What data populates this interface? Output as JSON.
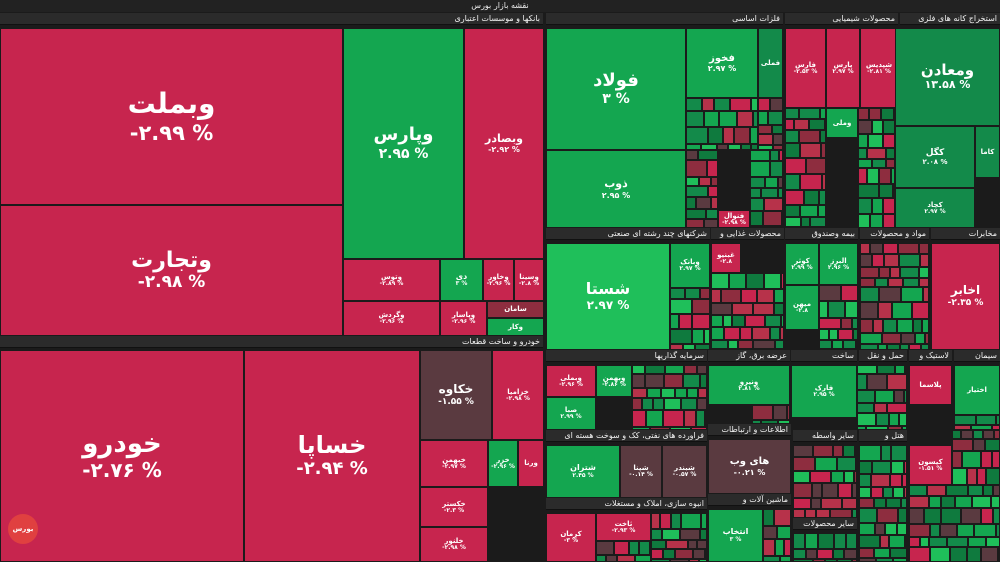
{
  "page_title": "نقشه بازار بورس",
  "colors": {
    "dark_red": "#c7254e",
    "red": "#b7324a",
    "mid_red": "#8e2d3f",
    "dark_green": "#138a4a",
    "green": "#14a650",
    "bright_green": "#1fbf5a",
    "neutral": "#5a3a40"
  },
  "sectors": [
    {
      "id": "banks",
      "name": "بانکها و موسسات اعتباری"
    },
    {
      "id": "auto",
      "name": "خودرو و ساخت قطعات"
    },
    {
      "id": "metals",
      "name": "فلزات اساسی"
    },
    {
      "id": "chem",
      "name": "محصولات شیمیایی"
    },
    {
      "id": "mining",
      "name": "استخراج کانه های فلزی"
    },
    {
      "id": "holding",
      "name": "شرکتهای چند رشته ای صنعتی"
    },
    {
      "id": "food",
      "name": "محصولات غذایی و"
    },
    {
      "id": "insurance",
      "name": "بیمه وصندوق"
    },
    {
      "id": "materials",
      "name": "مواد و محصولات"
    },
    {
      "id": "telecom",
      "name": "مخابرات"
    },
    {
      "id": "invest",
      "name": "سرمایه گذاریها"
    },
    {
      "id": "utility",
      "name": "عرضه برق، گاز"
    },
    {
      "id": "construction",
      "name": "ساخت"
    },
    {
      "id": "transport",
      "name": "حمل و نقل"
    },
    {
      "id": "rubber",
      "name": "لاستیک و"
    },
    {
      "id": "cement",
      "name": "سیمان"
    },
    {
      "id": "oil",
      "name": "فراورده های نفتی، کک و سوخت هسته ای"
    },
    {
      "id": "it",
      "name": "اطلاعات و ارتباطات"
    },
    {
      "id": "other_fin",
      "name": "سایر واسطه"
    },
    {
      "id": "pharma",
      "name": "هتل و"
    },
    {
      "id": "realestate",
      "name": "انبوه سازی، املاک و مستغلات"
    },
    {
      "id": "machinery",
      "name": "ماشین آلات و"
    },
    {
      "id": "other_prod",
      "name": "سایر محصولات"
    }
  ],
  "tiles": [
    {
      "name": "وبملت",
      "value": "-۲.۹۹ %"
    },
    {
      "name": "وتجارت",
      "value": "-۲.۹۸ %"
    },
    {
      "name": "وپارس",
      "value": "۲.۹۵ %"
    },
    {
      "name": "وبصادر",
      "value": "-۲.۹۲ %"
    },
    {
      "name": "وتوس",
      "value": "-۲.۸۹ %"
    },
    {
      "name": "دی",
      "value": "۳ %"
    },
    {
      "name": "وخاور",
      "value": "-۲.۹۶ %"
    },
    {
      "name": "وسینا",
      "value": "-۲.۸ %"
    },
    {
      "name": "وگردش",
      "value": "-۲.۹۶ %"
    },
    {
      "name": "وپاسار",
      "value": "-۲.۹۶ %"
    },
    {
      "name": "سامان",
      "value": ""
    },
    {
      "name": "وکار",
      "value": ""
    },
    {
      "name": "خودرو",
      "value": "-۲.۷۶ %"
    },
    {
      "name": "خساپا",
      "value": "-۲.۹۴ %"
    },
    {
      "name": "خکاوه",
      "value": "-۱.۵۵ %"
    },
    {
      "name": "خزامیا",
      "value": "-۲.۹۸ %"
    },
    {
      "name": "خبهمن",
      "value": "-۲.۹۷ %"
    },
    {
      "name": "خزر",
      "value": "-۲.۹۶ %"
    },
    {
      "name": "ورنا",
      "value": ""
    },
    {
      "name": "خکستر",
      "value": "-۲.۳ %"
    },
    {
      "name": "خلنور",
      "value": "-۲.۹۸ %"
    },
    {
      "name": "فولاد",
      "value": "۳ %"
    },
    {
      "name": "فخوز",
      "value": "۲.۹۷ %"
    },
    {
      "name": "فملی",
      "value": ""
    },
    {
      "name": "ذوب",
      "value": "۲.۹۵ %"
    },
    {
      "name": "فنوال",
      "value": "-۲.۹۸ %"
    },
    {
      "name": "شپدیس",
      "value": "-۲.۸۱ %"
    },
    {
      "name": "پارس",
      "value": "۲.۹۷ %"
    },
    {
      "name": "فارس",
      "value": "-۲.۵۳ %"
    },
    {
      "name": "وملی",
      "value": ""
    },
    {
      "name": "ومعادن",
      "value": "۱۳.۵۸ %"
    },
    {
      "name": "کگل",
      "value": "۲.۰۸ %"
    },
    {
      "name": "کچاد",
      "value": "۲.۹۷ %"
    },
    {
      "name": "کاما",
      "value": ""
    },
    {
      "name": "شستا",
      "value": "۲.۹۷ %"
    },
    {
      "name": "وبانک",
      "value": "۲.۹۷ %"
    },
    {
      "name": "غبنیو",
      "value": "-۲.۸"
    },
    {
      "name": "کوثر",
      "value": "۲.۹۹ %"
    },
    {
      "name": "البرز",
      "value": "۲.۹۶ %"
    },
    {
      "name": "میهن",
      "value": "-۲.۸"
    },
    {
      "name": "اخابر",
      "value": "-۲.۳۵ %"
    },
    {
      "name": "وبملی",
      "value": "-۲.۹۶ %"
    },
    {
      "name": "وبهمن",
      "value": "-۲.۸۶ %"
    },
    {
      "name": "صبا",
      "value": "۲.۹۹ %"
    },
    {
      "name": "ونیرو",
      "value": "۲.۸۱ %"
    },
    {
      "name": "فارک",
      "value": "۲.۹۵ %"
    },
    {
      "name": "پلاسما",
      "value": ""
    },
    {
      "name": "شتران",
      "value": "۲.۴۵ %"
    },
    {
      "name": "شپنا",
      "value": "-۰.۱۴ %"
    },
    {
      "name": "شبندر",
      "value": "-۰.۵۷ %"
    },
    {
      "name": "های وب",
      "value": "-۰.۲۱ %"
    },
    {
      "name": "کیسون",
      "value": "-۱.۵۱ %"
    },
    {
      "name": "کرمان",
      "value": "-۳ %"
    },
    {
      "name": "ثاخت",
      "value": "-۲.۹۳ %"
    },
    {
      "name": "انتخاب",
      "value": "۳ %"
    },
    {
      "name": "اختیار",
      "value": ""
    }
  ]
}
